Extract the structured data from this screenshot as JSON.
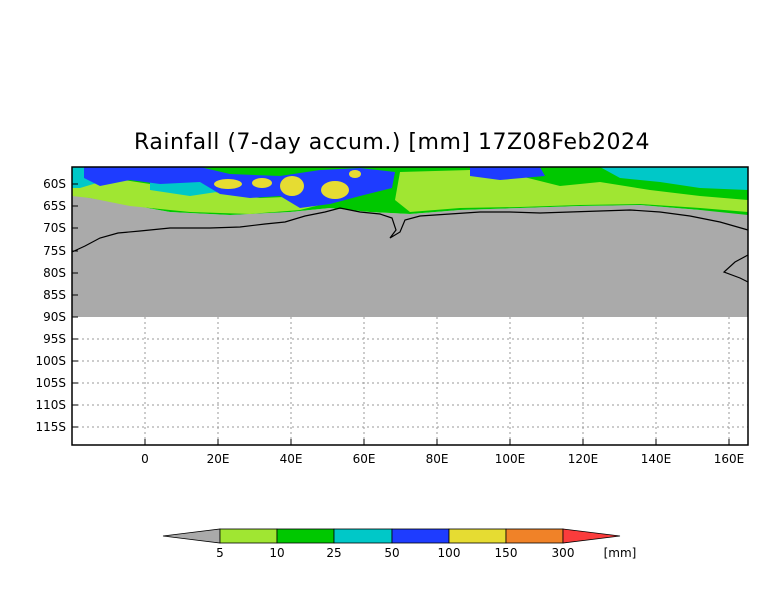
{
  "map": {
    "title": "Rainfall (7-day accum.) [mm] 17Z08Feb2024",
    "lat_labels": [
      "60S",
      "65S",
      "70S",
      "75S",
      "80S",
      "85S",
      "90S",
      "95S",
      "100S",
      "105S",
      "110S",
      "115S"
    ],
    "lon_labels": [
      "0",
      "20E",
      "40E",
      "60E",
      "80E",
      "100E",
      "120E",
      "140E",
      "160E"
    ],
    "colors": {
      "land": "#aaaaaa",
      "c1": "#a0e632",
      "c2": "#00c800",
      "c3": "#00c8c8",
      "c4": "#1e3cff",
      "c5": "#e6dc32",
      "c6": "#f08228",
      "c7": "#fa3c3c"
    }
  },
  "colorbar": {
    "labels": [
      "5",
      "10",
      "25",
      "50",
      "100",
      "150",
      "300"
    ],
    "unit": "[mm]"
  }
}
